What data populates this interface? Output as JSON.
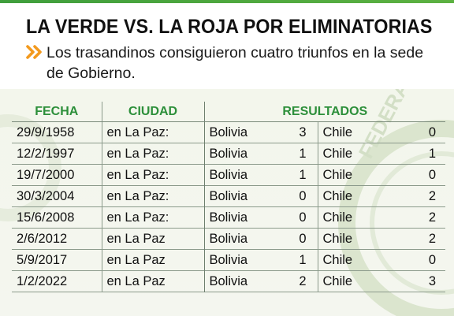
{
  "header": {
    "title": "LA VERDE VS. LA ROJA POR ELIMINATORIAS",
    "subtitle": "Los trasandinos consiguieron cuatro triunfos en la sede de Gobierno."
  },
  "table": {
    "headers": {
      "date": "FECHA",
      "city": "CIUDAD",
      "results": "RESULTADOS"
    },
    "rows": [
      {
        "date": "29/9/1958",
        "city": "en La Paz:",
        "home": "Bolivia",
        "home_score": "3",
        "away": "Chile",
        "away_score": "0"
      },
      {
        "date": "12/2/1997",
        "city": "en La Paz:",
        "home": "Bolivia",
        "home_score": "1",
        "away": "Chile",
        "away_score": "1"
      },
      {
        "date": "19/7/2000",
        "city": "en La Paz:",
        "home": "Bolivia",
        "home_score": "1",
        "away": "Chile",
        "away_score": "0"
      },
      {
        "date": "30/3/2004",
        "city": "en La Paz:",
        "home": "Bolivia",
        "home_score": "0",
        "away": "Chile",
        "away_score": "2"
      },
      {
        "date": "15/6/2008",
        "city": "en La Paz:",
        "home": "Bolivia",
        "home_score": "0",
        "away": "Chile",
        "away_score": "2"
      },
      {
        "date": "2/6/2012",
        "city": "en La Paz",
        "home": "Bolivia",
        "home_score": "0",
        "away": "Chile",
        "away_score": "2"
      },
      {
        "date": "5/9/2017",
        "city": "en La Paz",
        "home": "Bolivia",
        "home_score": "1",
        "away": "Chile",
        "away_score": "0"
      },
      {
        "date": "1/2/2022",
        "city": "en La Paz",
        "home": "Bolivia",
        "home_score": "2",
        "away": "Chile",
        "away_score": "3"
      }
    ]
  },
  "watermark": {
    "text": "FEDERACIÓN"
  },
  "colors": {
    "accent_green": "#2c8f3a",
    "chevron_orange": "#f39a1e",
    "panel_bg": "#f3f6ec"
  }
}
